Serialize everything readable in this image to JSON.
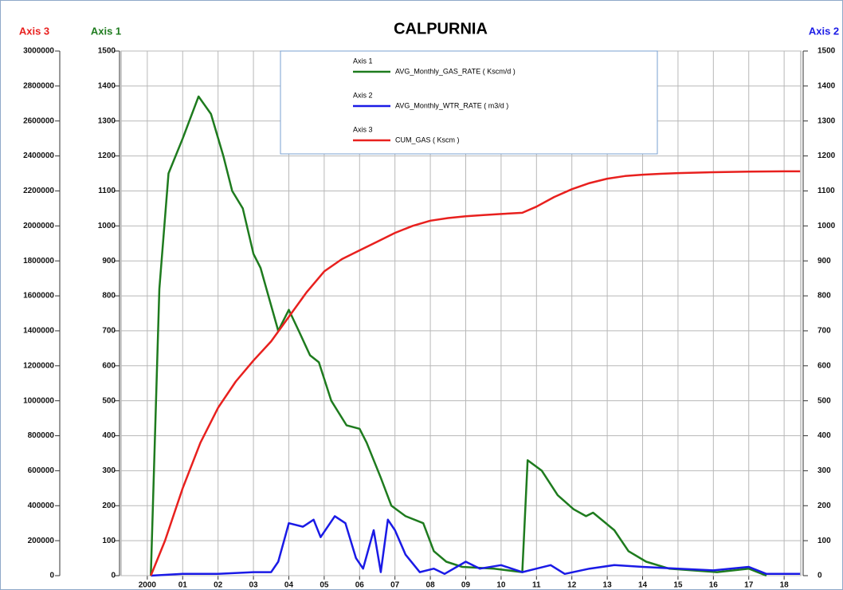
{
  "chart_data": {
    "type": "line",
    "title": "CALPURNIA",
    "y_label": "Axis 1",
    "y2_label": "Axis 2",
    "y3_label": "Axis 3",
    "xlim": [
      1999.26,
      2018.47
    ],
    "xticks": [
      {
        "value": 2000,
        "label": "2000"
      },
      {
        "value": 2001,
        "label": "01"
      },
      {
        "value": 2002,
        "label": "02"
      },
      {
        "value": 2003,
        "label": "03"
      },
      {
        "value": 2004,
        "label": "04"
      },
      {
        "value": 2005,
        "label": "05"
      },
      {
        "value": 2006,
        "label": "06"
      },
      {
        "value": 2007,
        "label": "07"
      },
      {
        "value": 2008,
        "label": "08"
      },
      {
        "value": 2009,
        "label": "09"
      },
      {
        "value": 2010,
        "label": "10"
      },
      {
        "value": 2011,
        "label": "11"
      },
      {
        "value": 2012,
        "label": "12"
      },
      {
        "value": 2013,
        "label": "13"
      },
      {
        "value": 2014,
        "label": "14"
      },
      {
        "value": 2015,
        "label": "15"
      },
      {
        "value": 2016,
        "label": "16"
      },
      {
        "value": 2017,
        "label": "17"
      },
      {
        "value": 2018,
        "label": "18"
      }
    ],
    "ylim": [
      0,
      1500
    ],
    "yticks": [
      0,
      100,
      200,
      300,
      400,
      500,
      600,
      700,
      800,
      900,
      1000,
      1100,
      1200,
      1300,
      1400,
      1500
    ],
    "y2lim": [
      0,
      1500
    ],
    "y2ticks": [
      0,
      100,
      200,
      300,
      400,
      500,
      600,
      700,
      800,
      900,
      1000,
      1100,
      1200,
      1300,
      1400,
      1500
    ],
    "y3lim": [
      0,
      3000000
    ],
    "y3ticks": [
      0,
      200000,
      400000,
      600000,
      800000,
      1000000,
      1200000,
      1400000,
      1600000,
      1800000,
      2000000,
      2200000,
      2400000,
      2600000,
      2800000,
      3000000
    ],
    "grid": true,
    "series": [
      {
        "name": "AVG_Monthly_GAS_RATE ( Kscm/d )",
        "color": "#1e7b1e",
        "axis": "y",
        "x": [
          2000.1,
          2000.34,
          2000.6,
          2001.0,
          2001.45,
          2001.8,
          2002.15,
          2002.4,
          2002.7,
          2003.0,
          2003.2,
          2003.7,
          2004.0,
          2004.28,
          2004.6,
          2004.85,
          2005.2,
          2005.63,
          2006.0,
          2006.2,
          2006.6,
          2006.9,
          2007.3,
          2007.8,
          2008.1,
          2008.45,
          2008.9,
          2009.8,
          2010.6,
          2010.75,
          2011.15,
          2011.6,
          2012.05,
          2012.4,
          2012.6,
          2013.2,
          2013.6,
          2014.1,
          2014.75,
          2016.1,
          2017.0,
          2017.5
        ],
        "values": [
          0,
          820,
          1150,
          1250,
          1370,
          1320,
          1200,
          1100,
          1050,
          920,
          880,
          700,
          760,
          700,
          630,
          610,
          500,
          430,
          420,
          380,
          280,
          200,
          170,
          150,
          70,
          40,
          25,
          20,
          10,
          330,
          300,
          230,
          190,
          170,
          180,
          130,
          70,
          40,
          20,
          10,
          20,
          0
        ]
      },
      {
        "name": "AVG_Monthly_WTR_RATE ( m3/d )",
        "color": "#1a1ae6",
        "axis": "y2",
        "x": [
          2000.1,
          2001.0,
          2002.0,
          2003.0,
          2003.5,
          2003.7,
          2004.0,
          2004.4,
          2004.7,
          2004.9,
          2005.3,
          2005.6,
          2005.9,
          2006.1,
          2006.4,
          2006.6,
          2006.8,
          2007.0,
          2007.3,
          2007.7,
          2008.1,
          2008.4,
          2009.0,
          2009.4,
          2010.0,
          2010.6,
          2011.0,
          2011.4,
          2011.8,
          2012.5,
          2013.2,
          2014.0,
          2015.0,
          2016.0,
          2017.0,
          2017.5,
          2018.45
        ],
        "values": [
          0,
          5,
          5,
          10,
          10,
          40,
          150,
          140,
          160,
          110,
          170,
          150,
          50,
          20,
          130,
          10,
          160,
          130,
          60,
          10,
          20,
          5,
          40,
          20,
          30,
          10,
          20,
          30,
          5,
          20,
          30,
          25,
          20,
          15,
          25,
          5,
          5
        ]
      },
      {
        "name": "CUM_GAS ( Kscm )",
        "color": "#e8201e",
        "axis": "y3",
        "x": [
          2000.1,
          2000.5,
          2001.0,
          2001.5,
          2002.0,
          2002.5,
          2003.0,
          2003.5,
          2004.0,
          2004.5,
          2005.0,
          2005.5,
          2006.0,
          2006.5,
          2007.0,
          2007.5,
          2008.0,
          2008.5,
          2009.0,
          2009.5,
          2010.0,
          2010.6,
          2011.0,
          2011.5,
          2012.0,
          2012.5,
          2013.0,
          2013.5,
          2014.0,
          2014.5,
          2015.0,
          2016.0,
          2017.0,
          2018.0,
          2018.45
        ],
        "values": [
          0,
          200000,
          500000,
          760000,
          960000,
          1110000,
          1230000,
          1340000,
          1480000,
          1620000,
          1740000,
          1810000,
          1860000,
          1910000,
          1960000,
          2000000,
          2030000,
          2045000,
          2055000,
          2062000,
          2068000,
          2075000,
          2110000,
          2165000,
          2210000,
          2245000,
          2270000,
          2285000,
          2293000,
          2298000,
          2302000,
          2307000,
          2310000,
          2312000,
          2312000
        ]
      }
    ]
  }
}
